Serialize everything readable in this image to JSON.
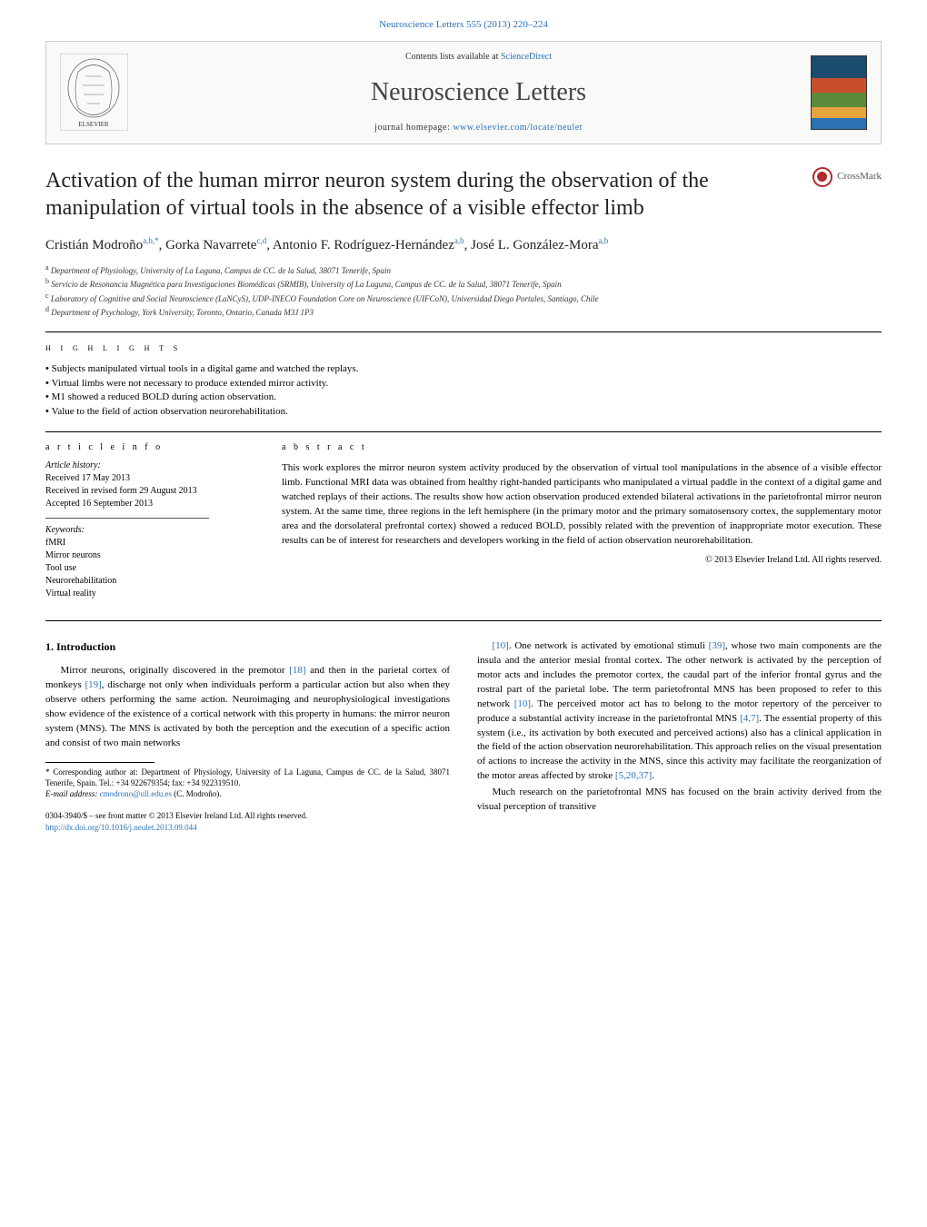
{
  "header": {
    "citation_link": "Neuroscience Letters 555 (2013) 220–224",
    "contents_prefix": "Contents lists available at ",
    "contents_link": "ScienceDirect",
    "journal_name": "Neuroscience Letters",
    "homepage_prefix": "journal homepage: ",
    "homepage_url": "www.elsevier.com/locate/neulet"
  },
  "crossmark": {
    "label": "CrossMark"
  },
  "title": "Activation of the human mirror neuron system during the observation of the manipulation of virtual tools in the absence of a visible effector limb",
  "authors_html": "Cristián Modroño<sup>a,b,*</sup>, Gorka Navarrete<sup>c,d</sup>, Antonio F. Rodríguez-Hernández<sup>a,b</sup>, José L. González-Mora<sup>a,b</sup>",
  "affiliations": [
    {
      "sup": "a",
      "text": "Department of Physiology, University of La Laguna, Campus de CC. de la Salud, 38071 Tenerife, Spain"
    },
    {
      "sup": "b",
      "text": "Servicio de Resonancia Magnética para Investigaciones Biomédicas (SRMIB), University of La Laguna, Campus de CC. de la Salud, 38071 Tenerife, Spain"
    },
    {
      "sup": "c",
      "text": "Laboratory of Cognitive and Social Neuroscience (LaNCyS), UDP-INECO Foundation Core on Neuroscience (UIFCoN), Universidad Diego Portales, Santiago, Chile"
    },
    {
      "sup": "d",
      "text": "Department of Psychology, York University, Toronto, Ontario, Canada M3J 1P3"
    }
  ],
  "highlights": {
    "heading": "h i g h l i g h t s",
    "items": [
      "Subjects manipulated virtual tools in a digital game and watched the replays.",
      "Virtual limbs were not necessary to produce extended mirror activity.",
      "M1 showed a reduced BOLD during action observation.",
      "Value to the field of action observation neurorehabilitation."
    ]
  },
  "article_info": {
    "heading": "a r t i c l e   i n f o",
    "history_label": "Article history:",
    "received": "Received 17 May 2013",
    "revised": "Received in revised form 29 August 2013",
    "accepted": "Accepted 16 September 2013",
    "keywords_label": "Keywords:",
    "keywords": [
      "fMRI",
      "Mirror neurons",
      "Tool use",
      "Neurorehabilitation",
      "Virtual reality"
    ]
  },
  "abstract": {
    "heading": "a b s t r a c t",
    "text": "This work explores the mirror neuron system activity produced by the observation of virtual tool manipulations in the absence of a visible effector limb. Functional MRI data was obtained from healthy right-handed participants who manipulated a virtual paddle in the context of a digital game and watched replays of their actions. The results show how action observation produced extended bilateral activations in the parietofrontal mirror neuron system. At the same time, three regions in the left hemisphere (in the primary motor and the primary somatosensory cortex, the supplementary motor area and the dorsolateral prefrontal cortex) showed a reduced BOLD, possibly related with the prevention of inappropriate motor execution. These results can be of interest for researchers and developers working in the field of action observation neurorehabilitation.",
    "copyright": "© 2013 Elsevier Ireland Ltd. All rights reserved."
  },
  "body": {
    "intro_heading": "1.  Introduction",
    "col1_p1": "Mirror neurons, originally discovered in the premotor [18] and then in the parietal cortex of monkeys [19], discharge not only when individuals perform a particular action but also when they observe others performing the same action. Neuroimaging and neurophysiological investigations show evidence of the existence of a cortical network with this property in humans: the mirror neuron system (MNS). The MNS is activated by both the perception and the execution of a specific action and consist of two main networks",
    "col2_p1": "[10]. One network is activated by emotional stimuli [39], whose two main components are the insula and the anterior mesial frontal cortex. The other network is activated by the perception of motor acts and includes the premotor cortex, the caudal part of the inferior frontal gyrus and the rostral part of the parietal lobe. The term parietofrontal MNS has been proposed to refer to this network [10]. The perceived motor act has to belong to the motor repertory of the perceiver to produce a substantial activity increase in the parietofrontal MNS [4,7]. The essential property of this system (i.e., its activation by both executed and perceived actions) also has a clinical application in the field of the action observation neurorehabilitation. This approach relies on the visual presentation of actions to increase the activity in the MNS, since this activity may facilitate the reorganization of the motor areas affected by stroke [5,20,37].",
    "col2_p2": "Much research on the parietofrontal MNS has focused on the brain activity derived from the visual perception of transitive"
  },
  "footnote": {
    "corresponding": "* Corresponding author at: Department of Physiology, University of La Laguna, Campus de CC. de la Salud, 38071 Tenerife, Spain. Tel.: +34 922679354; fax: +34 922319510.",
    "email_label": "E-mail address: ",
    "email": "cmodrono@ull.edu.es",
    "email_suffix": " (C. Modroño)."
  },
  "footer": {
    "issn": "0304-3940/$ – see front matter © 2013 Elsevier Ireland Ltd. All rights reserved.",
    "doi": "http://dx.doi.org/10.1016/j.neulet.2013.09.044"
  },
  "colors": {
    "link": "#2a72b5",
    "text": "#000000",
    "crossmark_red": "#b02a2a"
  }
}
